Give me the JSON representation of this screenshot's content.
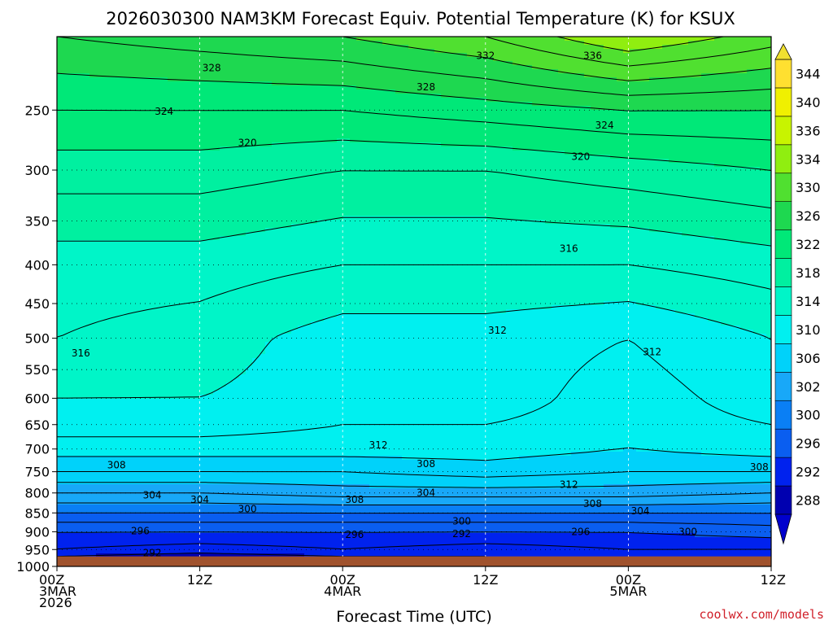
{
  "chart_data": {
    "type": "heatmap",
    "title": "2026030300 NAM3KM Forecast Equiv. Potential Temperature (K) for KSUX",
    "xlabel": "Forecast Time (UTC)",
    "credit": "coolwx.com/models",
    "x_ticks": [
      {
        "hour": 0,
        "line1": "00Z",
        "line2": "3MAR",
        "line3": "2026"
      },
      {
        "hour": 12,
        "line1": "12Z",
        "line2": "",
        "line3": ""
      },
      {
        "hour": 24,
        "line1": "00Z",
        "line2": "4MAR",
        "line3": ""
      },
      {
        "hour": 36,
        "line1": "12Z",
        "line2": "",
        "line3": ""
      },
      {
        "hour": 48,
        "line1": "00Z",
        "line2": "5MAR",
        "line3": ""
      },
      {
        "hour": 60,
        "line1": "12Z",
        "line2": "",
        "line3": ""
      }
    ],
    "xlim_hours": [
      0,
      60
    ],
    "y_axis": "pressure_hPa_log",
    "ylim": [
      1000,
      200
    ],
    "y_ticks": [
      "250",
      "300",
      "350",
      "400",
      "450",
      "500",
      "550",
      "600",
      "650",
      "700",
      "750",
      "800",
      "850",
      "900",
      "950",
      "1000"
    ],
    "surface_pressure_hPa": 970,
    "colorbar_levels": [
      288,
      292,
      296,
      300,
      302,
      306,
      310,
      314,
      318,
      322,
      326,
      330,
      334,
      336,
      340,
      344
    ],
    "colorbar_labels": [
      "344",
      "340",
      "336",
      "334",
      "330",
      "326",
      "322",
      "318",
      "314",
      "310",
      "306",
      "302",
      "300",
      "296",
      "292",
      "288"
    ],
    "colorbar_colors": [
      "#0000b0",
      "#0022ee",
      "#0a5ef0",
      "#0a7ff5",
      "#18a8f8",
      "#00d2fa",
      "#00f0f0",
      "#00f5c8",
      "#00f0a0",
      "#00e878",
      "#1ed850",
      "#50e030",
      "#90ee10",
      "#c8f400",
      "#f0f000",
      "#ffe030"
    ],
    "colorbar_overflow_low": "#0000cd",
    "colorbar_overflow_high": "#f0e030",
    "profile_times_hours": [
      0,
      12,
      24,
      36,
      48,
      60
    ],
    "profiles": [
      [
        [
          970,
          292
        ],
        [
          950,
          294
        ],
        [
          900,
          296
        ],
        [
          850,
          300
        ],
        [
          800,
          304
        ],
        [
          750,
          308
        ],
        [
          700,
          311
        ],
        [
          650,
          313
        ],
        [
          600,
          314
        ],
        [
          500,
          316
        ],
        [
          400,
          317
        ],
        [
          300,
          321
        ],
        [
          250,
          324
        ],
        [
          200,
          328
        ]
      ],
      [
        [
          970,
          291
        ],
        [
          950,
          293
        ],
        [
          900,
          296
        ],
        [
          850,
          300
        ],
        [
          800,
          304
        ],
        [
          750,
          308
        ],
        [
          700,
          311
        ],
        [
          650,
          313
        ],
        [
          600,
          314
        ],
        [
          500,
          315
        ],
        [
          400,
          317
        ],
        [
          300,
          321
        ],
        [
          250,
          324
        ],
        [
          200,
          329
        ]
      ],
      [
        [
          970,
          292
        ],
        [
          950,
          294
        ],
        [
          900,
          296
        ],
        [
          850,
          300
        ],
        [
          800,
          305
        ],
        [
          750,
          308
        ],
        [
          700,
          311
        ],
        [
          650,
          312
        ],
        [
          600,
          313
        ],
        [
          500,
          313
        ],
        [
          400,
          316
        ],
        [
          300,
          320
        ],
        [
          250,
          324
        ],
        [
          200,
          330
        ]
      ],
      [
        [
          970,
          292
        ],
        [
          950,
          293
        ],
        [
          900,
          296
        ],
        [
          850,
          300
        ],
        [
          800,
          305
        ],
        [
          750,
          309
        ],
        [
          700,
          311
        ],
        [
          650,
          312
        ],
        [
          600,
          313
        ],
        [
          500,
          313
        ],
        [
          400,
          316
        ],
        [
          300,
          320
        ],
        [
          250,
          325
        ],
        [
          200,
          332
        ]
      ],
      [
        [
          970,
          293
        ],
        [
          950,
          294
        ],
        [
          900,
          296
        ],
        [
          850,
          300
        ],
        [
          800,
          305
        ],
        [
          750,
          308
        ],
        [
          700,
          310
        ],
        [
          650,
          311
        ],
        [
          600,
          311
        ],
        [
          500,
          312
        ],
        [
          400,
          316
        ],
        [
          300,
          321
        ],
        [
          250,
          326
        ],
        [
          200,
          336
        ]
      ],
      [
        [
          970,
          292
        ],
        [
          950,
          294
        ],
        [
          900,
          297
        ],
        [
          850,
          300
        ],
        [
          800,
          304
        ],
        [
          750,
          308
        ],
        [
          700,
          311
        ],
        [
          650,
          312
        ],
        [
          600,
          313
        ],
        [
          500,
          314
        ],
        [
          400,
          317
        ],
        [
          300,
          322
        ],
        [
          250,
          326
        ],
        [
          200,
          333
        ]
      ]
    ],
    "contour_labels": [
      {
        "text": "328",
        "hour": 13,
        "p": 220
      },
      {
        "text": "332",
        "hour": 36,
        "p": 212
      },
      {
        "text": "336",
        "hour": 45,
        "p": 212
      },
      {
        "text": "328",
        "hour": 31,
        "p": 233
      },
      {
        "text": "324",
        "hour": 9,
        "p": 251
      },
      {
        "text": "324",
        "hour": 46,
        "p": 262
      },
      {
        "text": "320",
        "hour": 16,
        "p": 276
      },
      {
        "text": "320",
        "hour": 44,
        "p": 288
      },
      {
        "text": "316",
        "hour": 43,
        "p": 381
      },
      {
        "text": "316",
        "hour": 2,
        "p": 523
      },
      {
        "text": "312",
        "hour": 37,
        "p": 488
      },
      {
        "text": "312",
        "hour": 50,
        "p": 521
      },
      {
        "text": "312",
        "hour": 27,
        "p": 692
      },
      {
        "text": "312",
        "hour": 43,
        "p": 780
      },
      {
        "text": "308",
        "hour": 5,
        "p": 735
      },
      {
        "text": "308",
        "hour": 31,
        "p": 732
      },
      {
        "text": "308",
        "hour": 59,
        "p": 740
      },
      {
        "text": "308",
        "hour": 25,
        "p": 817
      },
      {
        "text": "308",
        "hour": 45,
        "p": 827
      },
      {
        "text": "304",
        "hour": 8,
        "p": 805
      },
      {
        "text": "304",
        "hour": 12,
        "p": 817
      },
      {
        "text": "304",
        "hour": 31,
        "p": 800
      },
      {
        "text": "304",
        "hour": 49,
        "p": 845
      },
      {
        "text": "300",
        "hour": 16,
        "p": 840
      },
      {
        "text": "300",
        "hour": 34,
        "p": 872
      },
      {
        "text": "300",
        "hour": 53,
        "p": 900
      },
      {
        "text": "296",
        "hour": 7,
        "p": 898
      },
      {
        "text": "296",
        "hour": 25,
        "p": 908
      },
      {
        "text": "296",
        "hour": 44,
        "p": 900
      },
      {
        "text": "292",
        "hour": 34,
        "p": 906
      },
      {
        "text": "292",
        "hour": 8,
        "p": 960
      }
    ]
  }
}
